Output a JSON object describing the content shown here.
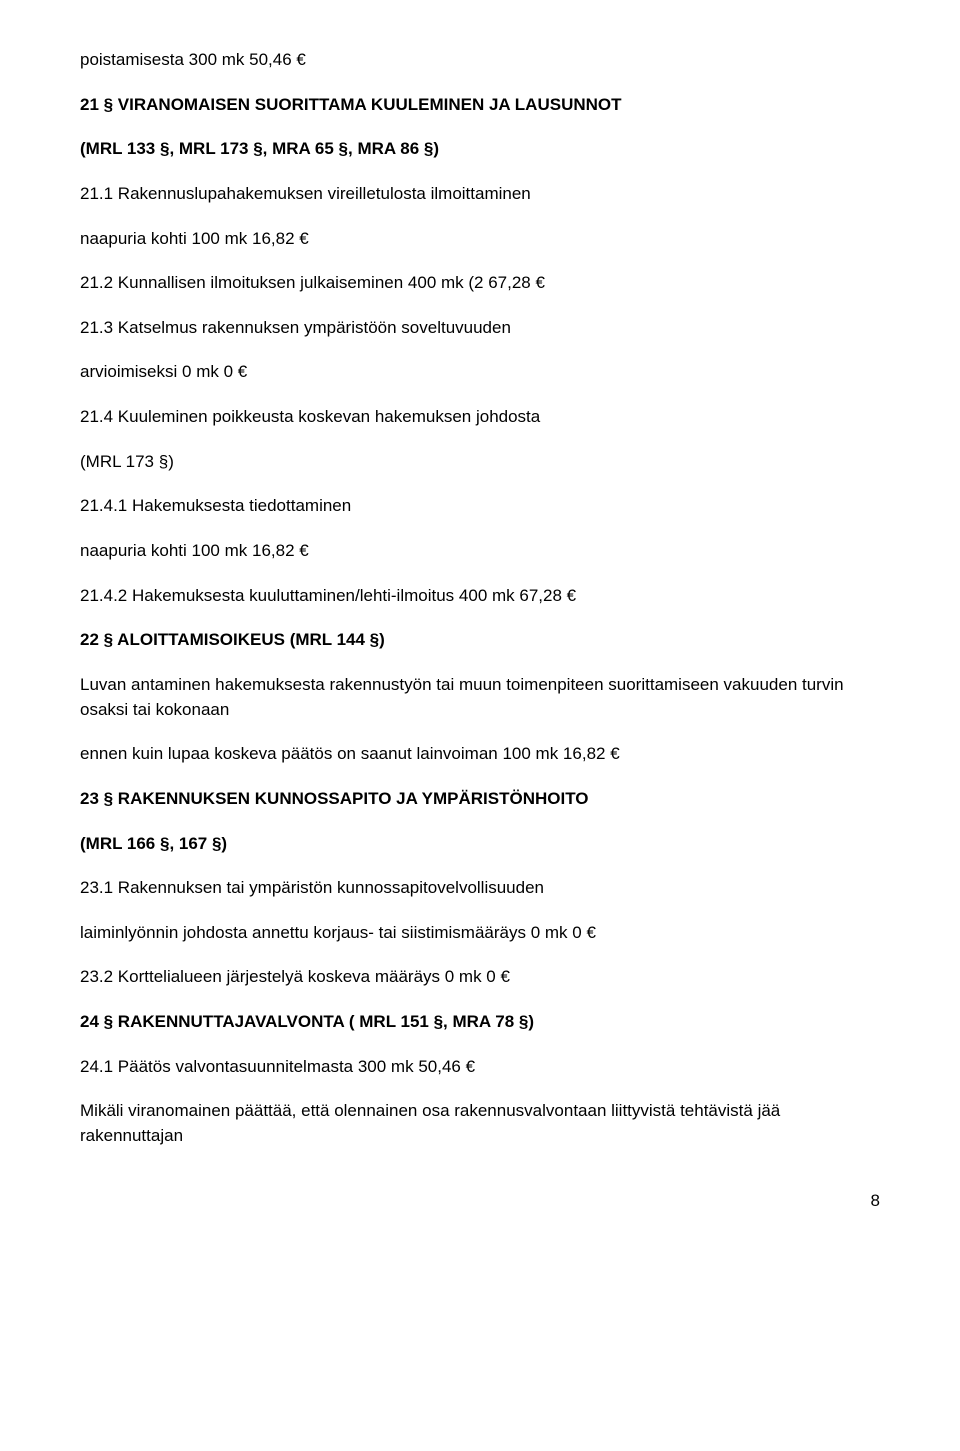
{
  "doc": {
    "p1": "poistamisesta 300 mk 50,46 €",
    "h1": "21 § VIRANOMAISEN SUORITTAMA KUULEMINEN JA LAUSUNNOT",
    "h1sub": "(MRL 133 §, MRL 173 §, MRA 65 §, MRA 86 §)",
    "p2": "21.1 Rakennuslupahakemuksen vireilletulosta ilmoittaminen",
    "p3": "naapuria kohti 100 mk 16,82 €",
    "p4": "21.2 Kunnallisen ilmoituksen julkaiseminen 400 mk (2 67,28 €",
    "p5": "21.3 Katselmus rakennuksen ympäristöön soveltuvuuden",
    "p6": "arvioimiseksi 0 mk 0 €",
    "p7": "21.4 Kuuleminen poikkeusta koskevan hakemuksen johdosta",
    "p8": "(MRL 173 §)",
    "p9": "21.4.1 Hakemuksesta tiedottaminen",
    "p10": "naapuria kohti 100 mk 16,82 €",
    "p11": "21.4.2 Hakemuksesta kuuluttaminen/lehti-ilmoitus 400 mk 67,28 €",
    "h2": "22 § ALOITTAMISOIKEUS (MRL 144 §)",
    "p12": "Luvan antaminen hakemuksesta rakennustyön tai muun toimenpiteen suorittamiseen vakuuden turvin osaksi tai kokonaan",
    "p13": "ennen kuin lupaa koskeva päätös on saanut lainvoiman 100 mk 16,82 €",
    "h3": "23 § RAKENNUKSEN KUNNOSSAPITO JA YMPÄRISTÖNHOITO",
    "h3sub": "(MRL 166 §, 167 §)",
    "p14": "23.1 Rakennuksen tai ympäristön kunnossapitovelvollisuuden",
    "p15": "laiminlyönnin johdosta annettu korjaus- tai siistimismääräys 0 mk 0 €",
    "p16": "23.2 Korttelialueen järjestelyä koskeva määräys 0 mk 0 €",
    "h4": "24 § RAKENNUTTAJAVALVONTA ( MRL 151 §, MRA 78 §)",
    "p17": "24.1 Päätös valvontasuunnitelmasta 300 mk 50,46 €",
    "p18": "Mikäli viranomainen päättää, että olennainen osa rakennusvalvontaan liittyvistä tehtävistä jää rakennuttajan",
    "pagenum": "8"
  }
}
